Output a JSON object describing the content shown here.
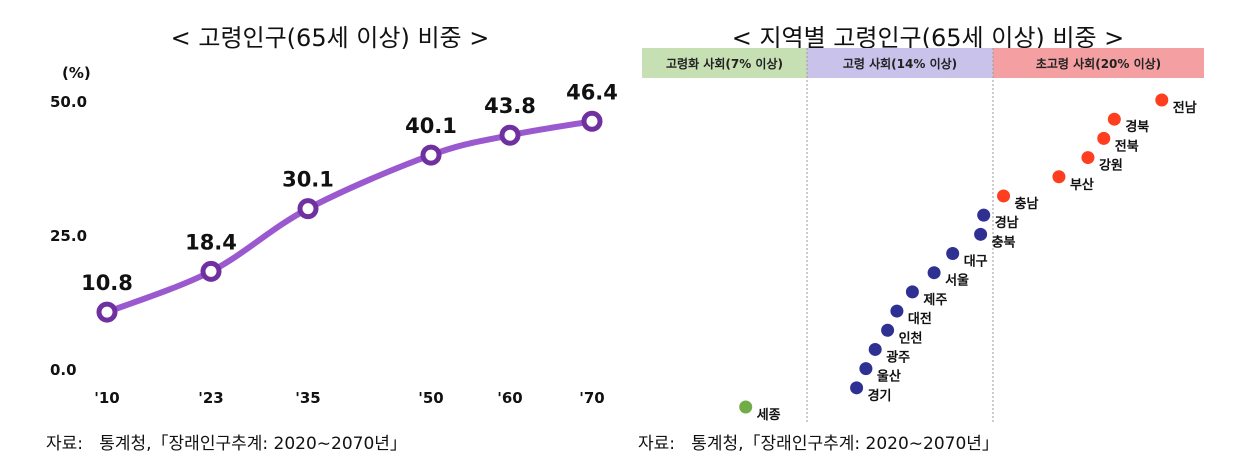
{
  "left": {
    "title": "< 고령인구(65세 이상) 비중 >",
    "source": "자료:   통계청,「장래인구추계: 2020∼2070년」"
  },
  "right": {
    "title": "< 지역별 고령인구(65세 이상) 비중 >",
    "source": "자료:   통계청,「장래인구추계: 2020∼2070년」"
  },
  "colors": {
    "line": "#9b59d0",
    "marker": "#7030a0",
    "aging": "#70ad47",
    "aged": "#2e3192",
    "superaged": "#ff3d1f",
    "band_aging": "#c6e0b4",
    "band_aged": "#c9c3ec",
    "band_superaged": "#f4a0a2"
  },
  "chart_data": [
    {
      "type": "line",
      "unit": "(%)",
      "x": [
        "'10",
        "'23",
        "'35",
        "'50",
        "'60",
        "'70"
      ],
      "values": [
        10.8,
        18.4,
        30.1,
        40.1,
        43.8,
        46.4
      ],
      "data_labels": [
        "10.8",
        "18.4",
        "30.1",
        "40.1",
        "43.8",
        "46.4"
      ],
      "yticks": [
        "0.0",
        "25.0",
        "50.0"
      ],
      "ylim": [
        0,
        50
      ],
      "grid": false
    },
    {
      "type": "scatter",
      "bands": [
        {
          "label": "고령화 사회(7% 이상)",
          "category": "aging"
        },
        {
          "label": "고령 사회(14% 이상)",
          "category": "aged"
        },
        {
          "label": "초고령 사회(20% 이상)",
          "category": "superaged"
        }
      ],
      "points": [
        {
          "region": "세종",
          "value": 11.4,
          "category": "aging"
        },
        {
          "region": "경기",
          "value": 15.6,
          "category": "aged"
        },
        {
          "region": "울산",
          "value": 15.9,
          "category": "aged"
        },
        {
          "region": "광주",
          "value": 16.2,
          "category": "aged"
        },
        {
          "region": "인천",
          "value": 16.6,
          "category": "aged"
        },
        {
          "region": "대전",
          "value": 16.9,
          "category": "aged"
        },
        {
          "region": "제주",
          "value": 17.4,
          "category": "aged"
        },
        {
          "region": "서울",
          "value": 18.1,
          "category": "aged"
        },
        {
          "region": "대구",
          "value": 18.7,
          "category": "aged"
        },
        {
          "region": "충북",
          "value": 19.6,
          "category": "aged"
        },
        {
          "region": "경남",
          "value": 19.7,
          "category": "aged"
        },
        {
          "region": "충남",
          "value": 20.4,
          "category": "superaged"
        },
        {
          "region": "부산",
          "value": 22.5,
          "category": "superaged"
        },
        {
          "region": "강원",
          "value": 23.6,
          "category": "superaged"
        },
        {
          "region": "전북",
          "value": 24.2,
          "category": "superaged"
        },
        {
          "region": "경북",
          "value": 24.6,
          "category": "superaged"
        },
        {
          "region": "전남",
          "value": 26.4,
          "category": "superaged"
        }
      ]
    }
  ]
}
